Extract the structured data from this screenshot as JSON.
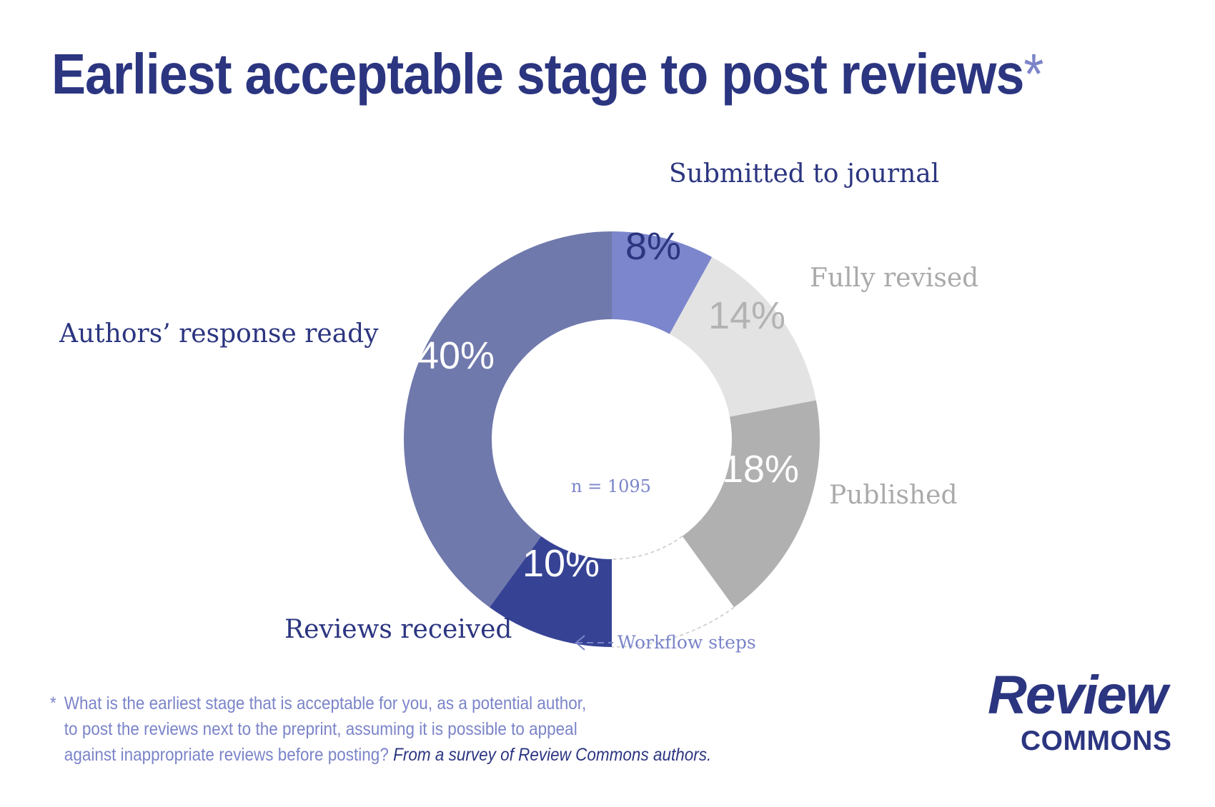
{
  "title": "Earliest acceptable stage to post reviews",
  "title_mark": "*",
  "chart_data": {
    "type": "pie",
    "title": "Earliest acceptable stage to post reviews*",
    "slices": [
      {
        "label": "Submitted to journal",
        "value": 8,
        "display": "8%",
        "color": "#7b86cc"
      },
      {
        "label": "Fully revised",
        "value": 14,
        "display": "14%",
        "color": "#e3e3e3"
      },
      {
        "label": "Published",
        "value": 18,
        "display": "18%",
        "color": "#b0b0b0"
      },
      {
        "label": "",
        "value": 10,
        "display": "",
        "color": "#ffffff"
      },
      {
        "label": "Reviews received",
        "value": 10,
        "display": "10%",
        "color": "#364395"
      },
      {
        "label": "Authors’ response ready",
        "value": 40,
        "display": "40%",
        "color": "#7079ac"
      }
    ],
    "center_label": "n = 1095",
    "annotation": "Workflow steps"
  },
  "footnote": {
    "star": "*",
    "lines": [
      "What is the earliest stage that is acceptable for you, as a potential author,",
      "to post the reviews next to the preprint, assuming it is possible to appeal",
      "against inappropriate reviews before posting? "
    ],
    "source": "From a survey of Review Commons authors."
  },
  "logo": {
    "word": "Review",
    "sub": "COMMONS"
  },
  "colors": {
    "navy": "#2b3580",
    "accent": "#7b84c9",
    "light_gray_text": "#aaaaaa"
  }
}
